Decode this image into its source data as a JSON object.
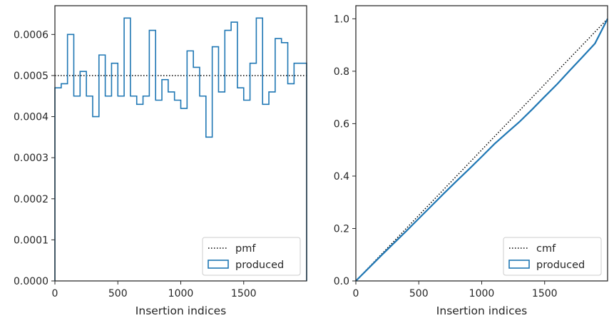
{
  "chart_data": [
    {
      "type": "line",
      "xlabel": "Insertion indices",
      "ylabel": "",
      "xlim": [
        0,
        2000
      ],
      "ylim": [
        0,
        0.00067
      ],
      "xticks": [
        0,
        500,
        1000,
        1500
      ],
      "xtick_labels": [
        "0",
        "500",
        "1000",
        "1500"
      ],
      "yticks": [
        0,
        0.0001,
        0.0002,
        0.0003,
        0.0004,
        0.0005,
        0.0006
      ],
      "ytick_labels": [
        "0.0000",
        "0.0001",
        "0.0002",
        "0.0003",
        "0.0004",
        "0.0005",
        "0.0006"
      ],
      "legend_position": "lower-right",
      "series": [
        {
          "name": "pmf",
          "style": "dotted",
          "color": "#000000",
          "x": [
            0,
            2000
          ],
          "y": [
            0.0005,
            0.0005
          ]
        },
        {
          "name": "produced",
          "style": "step",
          "color": "#1f77b4",
          "bin_edges": [
            0,
            50,
            100,
            150,
            200,
            250,
            300,
            350,
            400,
            450,
            500,
            550,
            600,
            650,
            700,
            750,
            800,
            850,
            900,
            950,
            1000,
            1050,
            1100,
            1150,
            1200,
            1250,
            1300,
            1350,
            1400,
            1450,
            1500,
            1550,
            1600,
            1650,
            1700,
            1750,
            1800,
            1850,
            1900,
            1950,
            2000
          ],
          "values": [
            0.00047,
            0.00048,
            0.0006,
            0.00045,
            0.00051,
            0.00045,
            0.0004,
            0.00055,
            0.00045,
            0.00053,
            0.00045,
            0.00064,
            0.00045,
            0.00043,
            0.00045,
            0.00061,
            0.00044,
            0.00049,
            0.00046,
            0.00044,
            0.00042,
            0.00056,
            0.00052,
            0.00045,
            0.00035,
            0.00057,
            0.00046,
            0.00061,
            0.00063,
            0.00047,
            0.00044,
            0.00053,
            0.00064,
            0.00043,
            0.00046,
            0.00059,
            0.00058,
            0.00048,
            0.00053,
            0.00053
          ]
        }
      ]
    },
    {
      "type": "line",
      "xlabel": "Insertion indices",
      "ylabel": "",
      "xlim": [
        0,
        2000
      ],
      "ylim": [
        0,
        1.05
      ],
      "xticks": [
        0,
        500,
        1000,
        1500
      ],
      "xtick_labels": [
        "0",
        "500",
        "1000",
        "1500"
      ],
      "yticks": [
        0,
        0.2,
        0.4,
        0.6,
        0.8,
        1.0
      ],
      "ytick_labels": [
        "0.0",
        "0.2",
        "0.4",
        "0.6",
        "0.8",
        "1.0"
      ],
      "legend_position": "lower-right",
      "series": [
        {
          "name": "cmf",
          "style": "dotted",
          "color": "#000000",
          "x": [
            0,
            2000
          ],
          "y": [
            0,
            1.0
          ]
        },
        {
          "name": "produced",
          "style": "line",
          "color": "#1f77b4",
          "x": [
            0,
            100,
            200,
            300,
            400,
            500,
            600,
            700,
            800,
            900,
            1000,
            1100,
            1200,
            1300,
            1400,
            1500,
            1600,
            1700,
            1800,
            1900,
            2000
          ],
          "y": [
            0,
            0.048,
            0.096,
            0.143,
            0.19,
            0.238,
            0.286,
            0.334,
            0.381,
            0.427,
            0.474,
            0.522,
            0.565,
            0.607,
            0.654,
            0.703,
            0.751,
            0.803,
            0.854,
            0.906,
            1.0
          ]
        }
      ]
    }
  ]
}
